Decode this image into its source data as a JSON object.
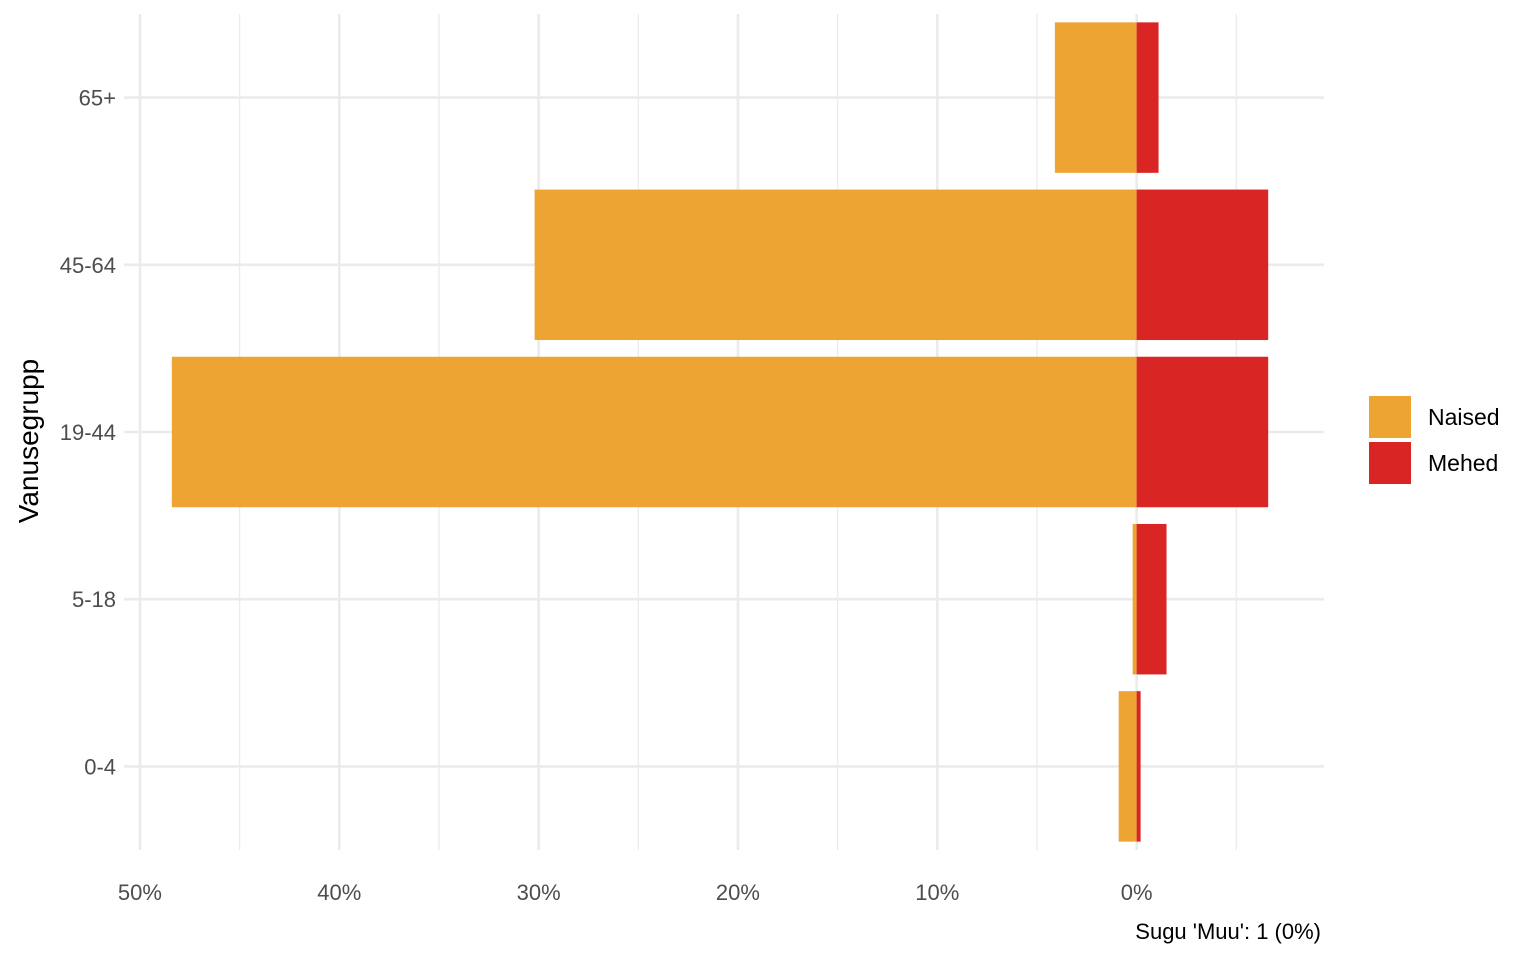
{
  "chart_data": {
    "type": "bar",
    "orientation": "horizontal",
    "stacking": "diverging",
    "categories": [
      "0-4",
      "5-18",
      "19-44",
      "45-64",
      "65+"
    ],
    "series": [
      {
        "name": "Naised",
        "color": "#EEA432",
        "values": [
          -0.9,
          -0.2,
          -48.4,
          -30.2,
          -4.1
        ]
      },
      {
        "name": "Mehed",
        "color": "#DA2525",
        "values": [
          0.2,
          1.5,
          6.6,
          6.6,
          1.1
        ]
      }
    ],
    "x": {
      "ticks": [
        -50,
        -40,
        -30,
        -20,
        -10,
        0
      ],
      "tick_labels": [
        "50%",
        "40%",
        "30%",
        "20%",
        "10%",
        "0%"
      ],
      "lim": [
        -50.8,
        9.4
      ]
    },
    "ylabel": "Vanusegrupp",
    "xlabel": "",
    "caption": "Sugu 'Muu': 1 (0%)",
    "grid": true,
    "legend": {
      "position": "right"
    }
  }
}
